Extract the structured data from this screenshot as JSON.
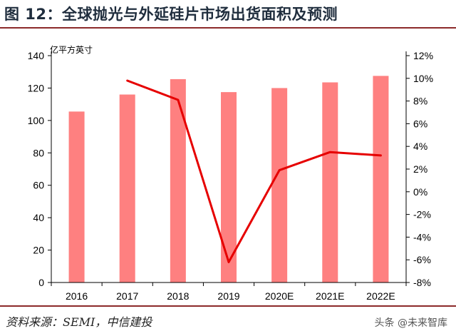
{
  "header": {
    "title": "图 12：全球抛光与外延硅片市场出货面积及预测"
  },
  "footer": {
    "source": "资料来源：SEMI，中信建投",
    "watermark": "头条 @未来智库"
  },
  "chart_data": {
    "type": "bar+line",
    "categories": [
      "2016",
      "2017",
      "2018",
      "2019",
      "2020E",
      "2021E",
      "2022E"
    ],
    "series": [
      {
        "type": "bar",
        "axis": "left",
        "color": "#fe8080",
        "values": [
          105.5,
          116,
          125.5,
          117.5,
          120,
          123.5,
          127.5
        ]
      },
      {
        "type": "line",
        "axis": "right",
        "color": "#e60000",
        "values": [
          null,
          9.8,
          8.1,
          -6.2,
          1.9,
          3.5,
          3.2
        ]
      }
    ],
    "left_axis": {
      "label": "亿平方英寸",
      "min": 0,
      "max": 140,
      "ticks": [
        "0",
        "20",
        "40",
        "60",
        "80",
        "100",
        "120",
        "140"
      ]
    },
    "right_axis": {
      "min": -8,
      "max": 12,
      "ticks": [
        "-8%",
        "-6%",
        "-4%",
        "-2%",
        "0%",
        "2%",
        "4%",
        "6%",
        "8%",
        "10%",
        "12%"
      ]
    },
    "grid": false
  }
}
